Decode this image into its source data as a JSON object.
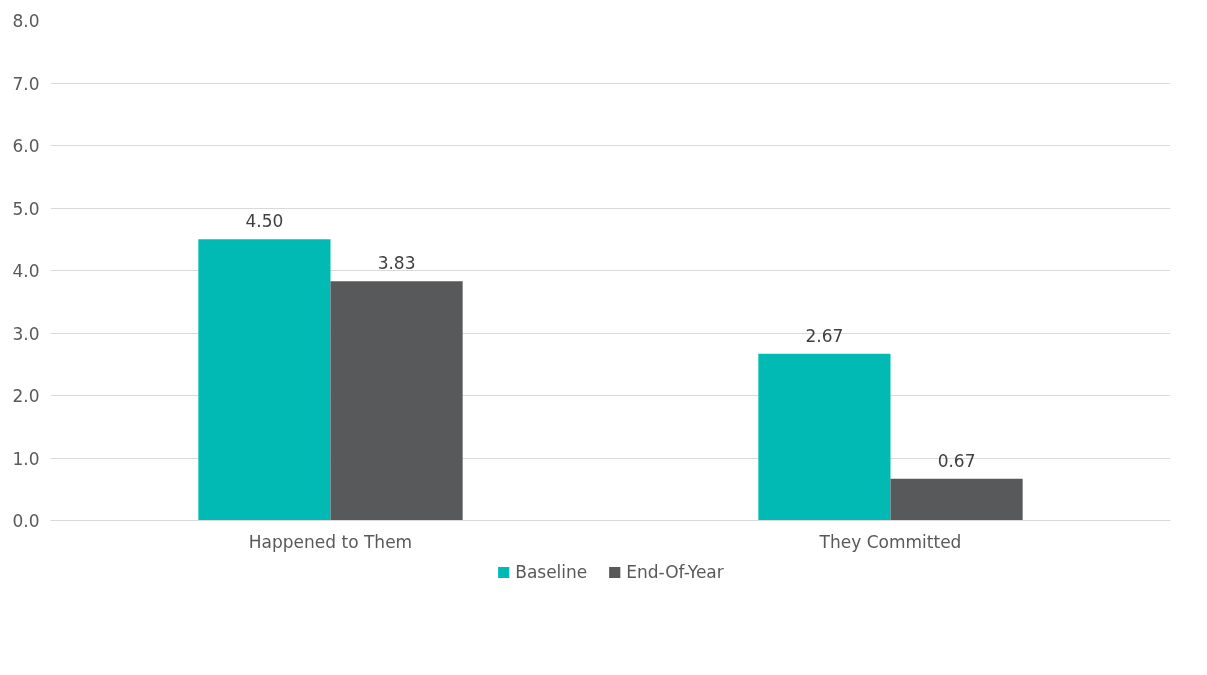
{
  "chart_data": {
    "type": "bar",
    "categories": [
      "Happened to Them",
      "They Committed"
    ],
    "series": [
      {
        "name": "Baseline",
        "color": "#00bab3",
        "values": [
          4.5,
          2.67
        ],
        "value_labels": [
          "4.50",
          "2.67"
        ]
      },
      {
        "name": "End-Of-Year",
        "color": "#58595b",
        "values": [
          3.83,
          0.67
        ],
        "value_labels": [
          "3.83",
          "0.67"
        ]
      }
    ],
    "ylim": [
      0,
      8
    ],
    "yticks": [
      {
        "value": 0,
        "label": "0.0"
      },
      {
        "value": 1,
        "label": "1.0"
      },
      {
        "value": 2,
        "label": "2.0"
      },
      {
        "value": 3,
        "label": "3.0"
      },
      {
        "value": 4,
        "label": "4.0"
      },
      {
        "value": 5,
        "label": "5.0"
      },
      {
        "value": 6,
        "label": "6.0"
      },
      {
        "value": 7,
        "label": "7.0"
      },
      {
        "value": 8,
        "label": "8.0"
      }
    ],
    "grid": "y",
    "legend": "bottom"
  }
}
